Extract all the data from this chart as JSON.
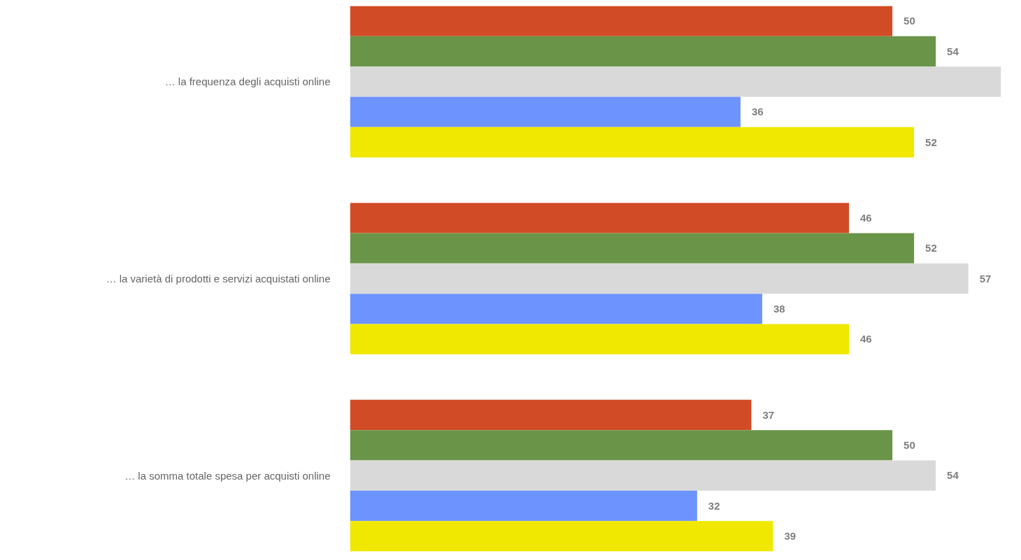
{
  "chart_data": {
    "type": "bar",
    "orientation": "horizontal",
    "categories": [
      "… la frequenza degli acquisti online",
      "… la varietà di prodotti e servizi acquistati online",
      "… la somma totale spesa per acquisti online"
    ],
    "series": [
      {
        "color": "#d24b27",
        "values": [
          50,
          46,
          37
        ]
      },
      {
        "color": "#6a9448",
        "values": [
          54,
          52,
          50
        ]
      },
      {
        "color": "#d9d9d9",
        "values": [
          60,
          57,
          54
        ],
        "value_labels": [
          null,
          "57",
          "54"
        ]
      },
      {
        "color": "#6d93ff",
        "values": [
          36,
          38,
          32
        ]
      },
      {
        "color": "#f0e800",
        "values": [
          52,
          46,
          39
        ]
      }
    ],
    "tick_labels": "y",
    "data_labels": true,
    "grid": false
  }
}
